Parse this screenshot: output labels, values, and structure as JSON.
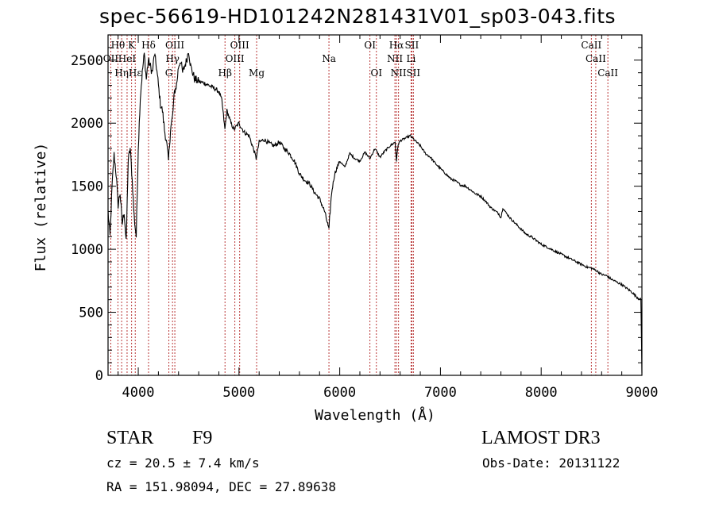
{
  "title": "spec-56619-HD101242N281431V01_sp03-043.fits",
  "info": {
    "object_class": "STAR",
    "subclass": "F9",
    "redshift": "cz = 20.5 ± 7.4 km/s",
    "coords": "RA = 151.98094, DEC =  27.89638",
    "survey": "LAMOST DR3",
    "obs_date": "Obs-Date: 20131122"
  },
  "chart_data": {
    "type": "line",
    "xlabel": "Wavelength (Å)",
    "ylabel": "Flux (relative)",
    "xlim": [
      3700,
      9000
    ],
    "ylim": [
      0,
      2700
    ],
    "xticks": [
      4000,
      5000,
      6000,
      7000,
      8000,
      9000
    ],
    "yticks": [
      0,
      500,
      1000,
      1500,
      2000,
      2500
    ],
    "spectrum": {
      "x": [
        3700,
        3720,
        3740,
        3760,
        3780,
        3800,
        3820,
        3840,
        3860,
        3880,
        3900,
        3920,
        3940,
        3960,
        3980,
        4000,
        4020,
        4040,
        4060,
        4080,
        4100,
        4120,
        4140,
        4160,
        4180,
        4200,
        4220,
        4240,
        4260,
        4280,
        4300,
        4320,
        4340,
        4360,
        4380,
        4400,
        4420,
        4440,
        4460,
        4480,
        4500,
        4520,
        4540,
        4560,
        4600,
        4650,
        4700,
        4750,
        4800,
        4830,
        4860,
        4880,
        4900,
        4920,
        4950,
        5000,
        5050,
        5100,
        5150,
        5170,
        5200,
        5250,
        5300,
        5350,
        5400,
        5450,
        5500,
        5550,
        5600,
        5650,
        5700,
        5750,
        5800,
        5850,
        5880,
        5893,
        5900,
        5920,
        5950,
        6000,
        6050,
        6100,
        6150,
        6200,
        6250,
        6300,
        6350,
        6400,
        6450,
        6500,
        6550,
        6563,
        6580,
        6600,
        6650,
        6700,
        6750,
        6800,
        6850,
        6900,
        6950,
        7000,
        7050,
        7100,
        7150,
        7200,
        7250,
        7300,
        7350,
        7400,
        7450,
        7500,
        7550,
        7580,
        7600,
        7620,
        7650,
        7700,
        7750,
        7800,
        7850,
        7900,
        7950,
        8000,
        8050,
        8100,
        8150,
        8200,
        8250,
        8300,
        8350,
        8400,
        8450,
        8500,
        8550,
        8600,
        8650,
        8700,
        8750,
        8800,
        8850,
        8900,
        8950,
        8990,
        9000
      ],
      "y": [
        1300,
        1100,
        1500,
        1750,
        1600,
        1350,
        1450,
        1200,
        1300,
        1050,
        1700,
        1800,
        1550,
        1250,
        1100,
        1800,
        2200,
        2400,
        2550,
        2350,
        2500,
        2450,
        2400,
        2550,
        2450,
        2300,
        2150,
        2100,
        1950,
        1850,
        1700,
        1950,
        2050,
        2250,
        2300,
        2450,
        2500,
        2400,
        2450,
        2500,
        2580,
        2450,
        2400,
        2350,
        2330,
        2320,
        2300,
        2280,
        2250,
        2180,
        1950,
        2100,
        2050,
        2000,
        1950,
        2000,
        1930,
        1900,
        1780,
        1720,
        1850,
        1870,
        1840,
        1820,
        1850,
        1800,
        1760,
        1700,
        1600,
        1550,
        1520,
        1450,
        1400,
        1300,
        1200,
        1150,
        1250,
        1450,
        1600,
        1700,
        1650,
        1760,
        1720,
        1700,
        1770,
        1720,
        1800,
        1730,
        1780,
        1820,
        1850,
        1700,
        1830,
        1860,
        1880,
        1900,
        1860,
        1820,
        1760,
        1730,
        1680,
        1640,
        1600,
        1560,
        1540,
        1510,
        1500,
        1470,
        1440,
        1420,
        1380,
        1330,
        1300,
        1280,
        1250,
        1330,
        1290,
        1240,
        1200,
        1160,
        1120,
        1100,
        1070,
        1040,
        1020,
        1000,
        980,
        960,
        940,
        920,
        900,
        880,
        860,
        850,
        830,
        800,
        790,
        760,
        740,
        720,
        690,
        660,
        620,
        600,
        20
      ]
    },
    "lines": [
      {
        "label": "Hθ",
        "x": 3798,
        "row": 0
      },
      {
        "label": "K",
        "x": 3934,
        "row": 0
      },
      {
        "label": "Hδ",
        "x": 4102,
        "row": 0
      },
      {
        "label": "OIII",
        "x": 4363,
        "row": 0
      },
      {
        "label": "OIII",
        "x": 5007,
        "row": 0
      },
      {
        "label": "OI",
        "x": 6300,
        "row": 0
      },
      {
        "label": "Hα",
        "x": 6563,
        "row": 0
      },
      {
        "label": "SII",
        "x": 6716,
        "row": 0
      },
      {
        "label": "CaII",
        "x": 8498,
        "row": 0
      },
      {
        "label": "OII",
        "x": 3727,
        "row": 1
      },
      {
        "label": "HeI",
        "x": 3889,
        "row": 1
      },
      {
        "label": "Hγ",
        "x": 4340,
        "row": 1
      },
      {
        "label": "OIII",
        "x": 4959,
        "row": 1
      },
      {
        "label": "NII",
        "x": 6548,
        "row": 1
      },
      {
        "label": "Li",
        "x": 6708,
        "row": 1
      },
      {
        "label": "CaII",
        "x": 8542,
        "row": 1
      },
      {
        "label": "Hε",
        "x": 3970,
        "row": 2
      },
      {
        "label": "Hη",
        "x": 3835,
        "row": 2
      },
      {
        "label": "G",
        "x": 4304,
        "row": 2
      },
      {
        "label": "Hβ",
        "x": 4861,
        "row": 2
      },
      {
        "label": "Mg",
        "x": 5175,
        "row": 2
      },
      {
        "label": "Na",
        "x": 5893,
        "row": 1
      },
      {
        "label": "OI",
        "x": 6364,
        "row": 2
      },
      {
        "label": "NII",
        "x": 6584,
        "row": 2
      },
      {
        "label": "SII",
        "x": 6731,
        "row": 2
      },
      {
        "label": "CaII",
        "x": 8662,
        "row": 2
      }
    ]
  },
  "colors": {
    "spectrum": "#000000",
    "lines": "#b22222",
    "axes": "#000000"
  }
}
